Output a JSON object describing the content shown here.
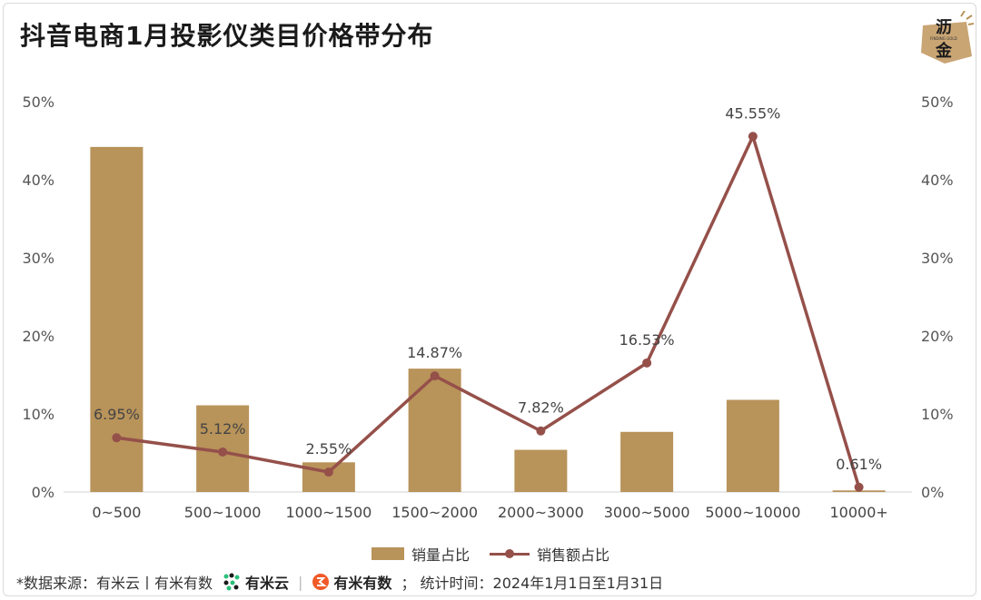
{
  "title": "抖音电商1月投影仪类目价格带分布",
  "logo": {
    "line1": "沥",
    "line2": "金",
    "small": "FINDING GOLD"
  },
  "chart_data": {
    "type": "bar",
    "categories": [
      "0~500",
      "500~1000",
      "1000~1500",
      "1500~2000",
      "2000~3000",
      "3000~5000",
      "5000~10000",
      "10000+"
    ],
    "series": [
      {
        "name": "销量占比",
        "type": "bar",
        "axis": "left",
        "values": [
          44.2,
          11.1,
          3.8,
          15.8,
          5.4,
          7.7,
          11.8,
          0.2
        ]
      },
      {
        "name": "销售额占比",
        "type": "line",
        "axis": "right",
        "values": [
          6.95,
          5.12,
          2.55,
          14.87,
          7.82,
          16.53,
          45.55,
          0.61
        ],
        "labels": [
          "6.95%",
          "5.12%",
          "2.55%",
          "14.87%",
          "7.82%",
          "16.53%",
          "45.55%",
          "0.61%"
        ]
      }
    ],
    "ylim": [
      0,
      50
    ],
    "y_ticks": [
      "0%",
      "10%",
      "20%",
      "30%",
      "40%",
      "50%"
    ],
    "y2_ticks": [
      "0%",
      "10%",
      "20%",
      "30%",
      "40%",
      "50%"
    ],
    "legend_position": "bottom",
    "grid": false,
    "colors": {
      "bar": "#b8935a",
      "line": "#95504a"
    }
  },
  "footer": {
    "source": "*数据来源：有米云丨有米有数",
    "brand1": "有米云",
    "brand2": "有米有数",
    "period": "；  统计时间：2024年1月1日至1月31日"
  }
}
